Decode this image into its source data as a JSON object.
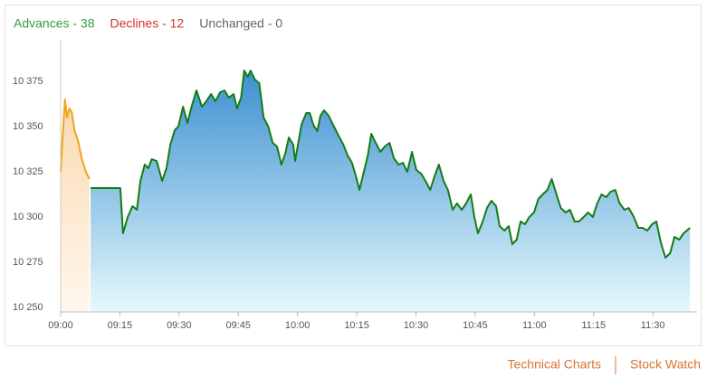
{
  "chart_data": {
    "type": "line",
    "breadth": [
      {
        "label": "Advances - 38",
        "color": "#2e9e3a"
      },
      {
        "label": "Declines - 12",
        "color": "#d3322f"
      },
      {
        "label": "Unchanged - 0",
        "color": "#666666"
      }
    ],
    "series": [
      {
        "color": "#f2a31c",
        "fill_top": "#fbd9b0",
        "fill_bottom": "#fff7ee",
        "x": [
          540,
          540.5,
          541.1,
          541.6,
          542.2,
          542.8,
          543.5,
          544.4,
          545.4,
          546.4,
          547.3
        ],
        "values": [
          10325,
          10345,
          10365,
          10355,
          10360,
          10358,
          10348,
          10342,
          10332,
          10325,
          10321
        ]
      },
      {
        "color": "#137d13",
        "fill_top": "#3d8fd1",
        "fill_bottom": "#e6f9fc",
        "x": [
          547.6,
          555.1,
          555.8,
          557,
          558.2,
          559.3,
          560.2,
          561.3,
          562.2,
          563.1,
          564.3,
          565.7,
          566.8,
          567.8,
          568.9,
          569.8,
          571,
          572.1,
          573.3,
          574.4,
          575.8,
          576.9,
          578.1,
          579.2,
          580.4,
          581.5,
          582.6,
          583.8,
          584.7,
          585.7,
          586.5,
          587.4,
          588.1,
          589.2,
          590.3,
          591.4,
          592.6,
          593.7,
          594.8,
          595.9,
          596.9,
          597.8,
          598.9,
          599.4,
          601,
          602.2,
          603.1,
          604,
          605,
          605.8,
          606.7,
          607.9,
          609,
          610.4,
          611.6,
          612.7,
          613.8,
          614.8,
          615.7,
          616.8,
          617.8,
          618.7,
          619.8,
          621,
          622.1,
          623.3,
          624.4,
          625.6,
          626.7,
          627.8,
          629,
          630.1,
          631.3,
          632.4,
          633.6,
          634.7,
          635.8,
          637,
          638.1,
          639.3,
          640.4,
          641.6,
          642.7,
          643.9,
          644.8,
          645.7,
          646.9,
          648,
          649.1,
          650.3,
          651.2,
          652.4,
          653.5,
          654.4,
          655.5,
          656.5,
          657.6,
          658.7,
          659.9,
          661,
          662.1,
          663.3,
          664.4,
          665.6,
          666.7,
          667.9,
          669,
          670.2,
          671.3,
          672.5,
          673.6,
          674.8,
          675.9,
          677,
          678.2,
          679.3,
          680.5,
          681.6,
          682.8,
          683.9,
          685.2,
          686.3,
          687.4,
          688.6,
          689.8,
          690.9,
          692,
          693.2,
          694.4,
          695.5,
          696.7,
          697.8,
          699.4
        ],
        "values": [
          10316,
          10316,
          10291,
          10300,
          10306,
          10304,
          10320,
          10329,
          10327,
          10332,
          10331,
          10320,
          10327,
          10340,
          10348,
          10350,
          10361,
          10352,
          10362,
          10370,
          10361,
          10364,
          10368,
          10364,
          10369,
          10370,
          10366,
          10368,
          10360,
          10366,
          10381,
          10377.5,
          10381,
          10376,
          10374,
          10355,
          10350,
          10341,
          10339,
          10329,
          10335,
          10344,
          10340,
          10331,
          10351,
          10357.5,
          10357.5,
          10351,
          10347.5,
          10356,
          10359,
          10356,
          10351,
          10345,
          10340,
          10334,
          10330,
          10322.5,
          10315,
          10325,
          10334,
          10346,
          10341,
          10336,
          10339,
          10341,
          10332.5,
          10329,
          10330,
          10325,
          10336,
          10326,
          10324,
          10320,
          10315,
          10322.5,
          10329,
          10320,
          10315,
          10304,
          10307.5,
          10304,
          10307.5,
          10312.5,
          10300,
          10291,
          10297.5,
          10305,
          10309,
          10306,
          10295,
          10292.5,
          10295,
          10285,
          10287.5,
          10297.5,
          10296,
          10300,
          10302.5,
          10310,
          10312.5,
          10315,
          10321,
          10312.5,
          10305,
          10302.5,
          10304,
          10297.5,
          10297.5,
          10300,
          10302.5,
          10300,
          10307.5,
          10312.5,
          10311,
          10314,
          10315,
          10307.5,
          10304,
          10305,
          10300,
          10294,
          10294,
          10292.5,
          10296,
          10297.5,
          10286,
          10277.5,
          10280,
          10289,
          10287.5,
          10291,
          10294
        ]
      }
    ],
    "xlim": [
      540,
      701.2
    ],
    "xticks": [
      {
        "value": 540,
        "label": "09:00"
      },
      {
        "value": 555,
        "label": "09:15"
      },
      {
        "value": 570,
        "label": "09:30"
      },
      {
        "value": 585,
        "label": "09:45"
      },
      {
        "value": 600,
        "label": "10:00"
      },
      {
        "value": 615,
        "label": "10:15"
      },
      {
        "value": 630,
        "label": "10:30"
      },
      {
        "value": 645,
        "label": "10:45"
      },
      {
        "value": 660,
        "label": "11:00"
      },
      {
        "value": 675,
        "label": "11:15"
      },
      {
        "value": 690,
        "label": "11:30"
      }
    ],
    "ylim": [
      10247.5,
      10397.5
    ],
    "yticks": [
      {
        "value": 10250,
        "label": "10 250"
      },
      {
        "value": 10275,
        "label": "10 275"
      },
      {
        "value": 10300,
        "label": "10 300"
      },
      {
        "value": 10325,
        "label": "10 325"
      },
      {
        "value": 10350,
        "label": "10 350"
      },
      {
        "value": 10375,
        "label": "10 375"
      }
    ],
    "grid": false
  },
  "links": [
    "Technical Charts",
    "Stock Watch"
  ]
}
